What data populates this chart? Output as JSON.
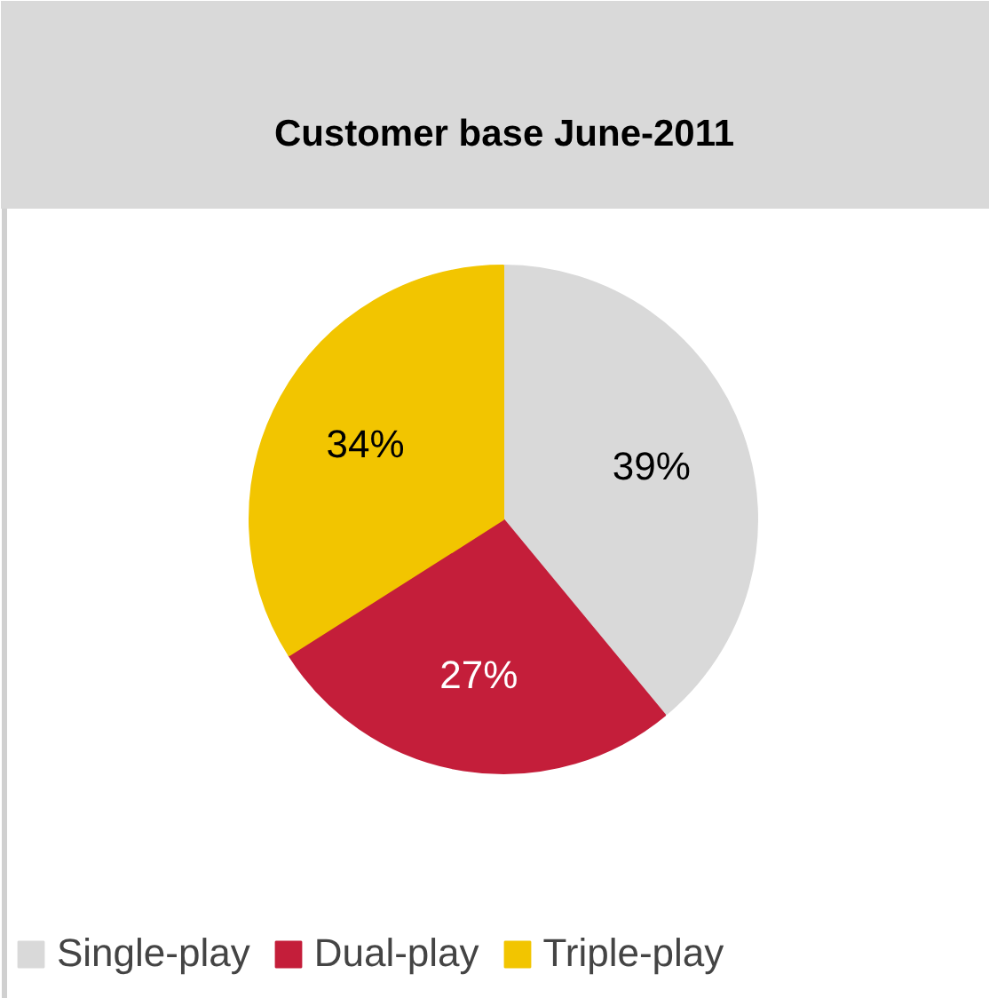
{
  "chart_data": {
    "type": "pie",
    "title": "Customer base June-2011",
    "categories": [
      "Single-play",
      "Dual-play",
      "Triple-play"
    ],
    "values": [
      39,
      27,
      34
    ],
    "colors": [
      "#d9d9d9",
      "#c41e3a",
      "#f2c500"
    ],
    "value_labels": [
      "39%",
      "27%",
      "34%"
    ],
    "legend": "bottom"
  }
}
